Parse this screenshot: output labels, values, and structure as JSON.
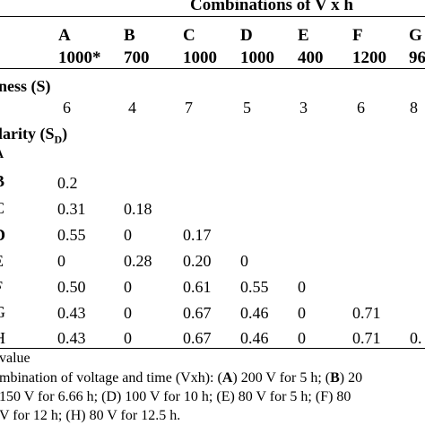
{
  "header": {
    "title": "Combinations of V x h"
  },
  "columns": [
    {
      "letter": "A",
      "value": "1000*"
    },
    {
      "letter": "B",
      "value": "700"
    },
    {
      "letter": "C",
      "value": "1000"
    },
    {
      "letter": "D",
      "value": "1000"
    },
    {
      "letter": "E",
      "value": "400"
    },
    {
      "letter": "F",
      "value": "1200"
    },
    {
      "letter": "G",
      "value": "96"
    }
  ],
  "sections": {
    "richness": {
      "label": "ness (S)",
      "values": [
        "6",
        "4",
        "7",
        "5",
        "3",
        "6",
        "8"
      ]
    },
    "similarity": {
      "label_main": "larity (S",
      "label_sub": "D",
      "label_end": ")"
    }
  },
  "matrix": [
    {
      "row": "A",
      "cells": []
    },
    {
      "row": "B",
      "cells": [
        "0.2"
      ]
    },
    {
      "row": "C",
      "cells": [
        "0.31",
        "0.18"
      ]
    },
    {
      "row": "D",
      "cells": [
        "0.55",
        "0",
        "0.17"
      ]
    },
    {
      "row": "E",
      "cells": [
        "0",
        "0.28",
        "0.20",
        "0"
      ]
    },
    {
      "row": "F",
      "cells": [
        "0.50",
        "0",
        "0.61",
        "0.55",
        "0"
      ]
    },
    {
      "row": "G",
      "cells": [
        "0.43",
        "0",
        "0.67",
        "0.46",
        "0",
        "0.71"
      ]
    },
    {
      "row": "H",
      "cells": [
        "0.43",
        "0",
        "0.67",
        "0.46",
        "0",
        "0.71",
        "0."
      ]
    }
  ],
  "footnotes": {
    "line1": "value",
    "line2_a": "mbination of voltage and time (Vxh): (",
    "line2_b": "A",
    "line2_c": ") 200 V for 5 h; (",
    "line2_d": "B",
    "line2_e": ") 20",
    "line3": "150 V for 6.66 h; (D) 100 V for 10 h; (E) 80 V for 5 h; (F) 80",
    "line4": "V for 12 h; (H) 80 V for 12.5 h."
  }
}
